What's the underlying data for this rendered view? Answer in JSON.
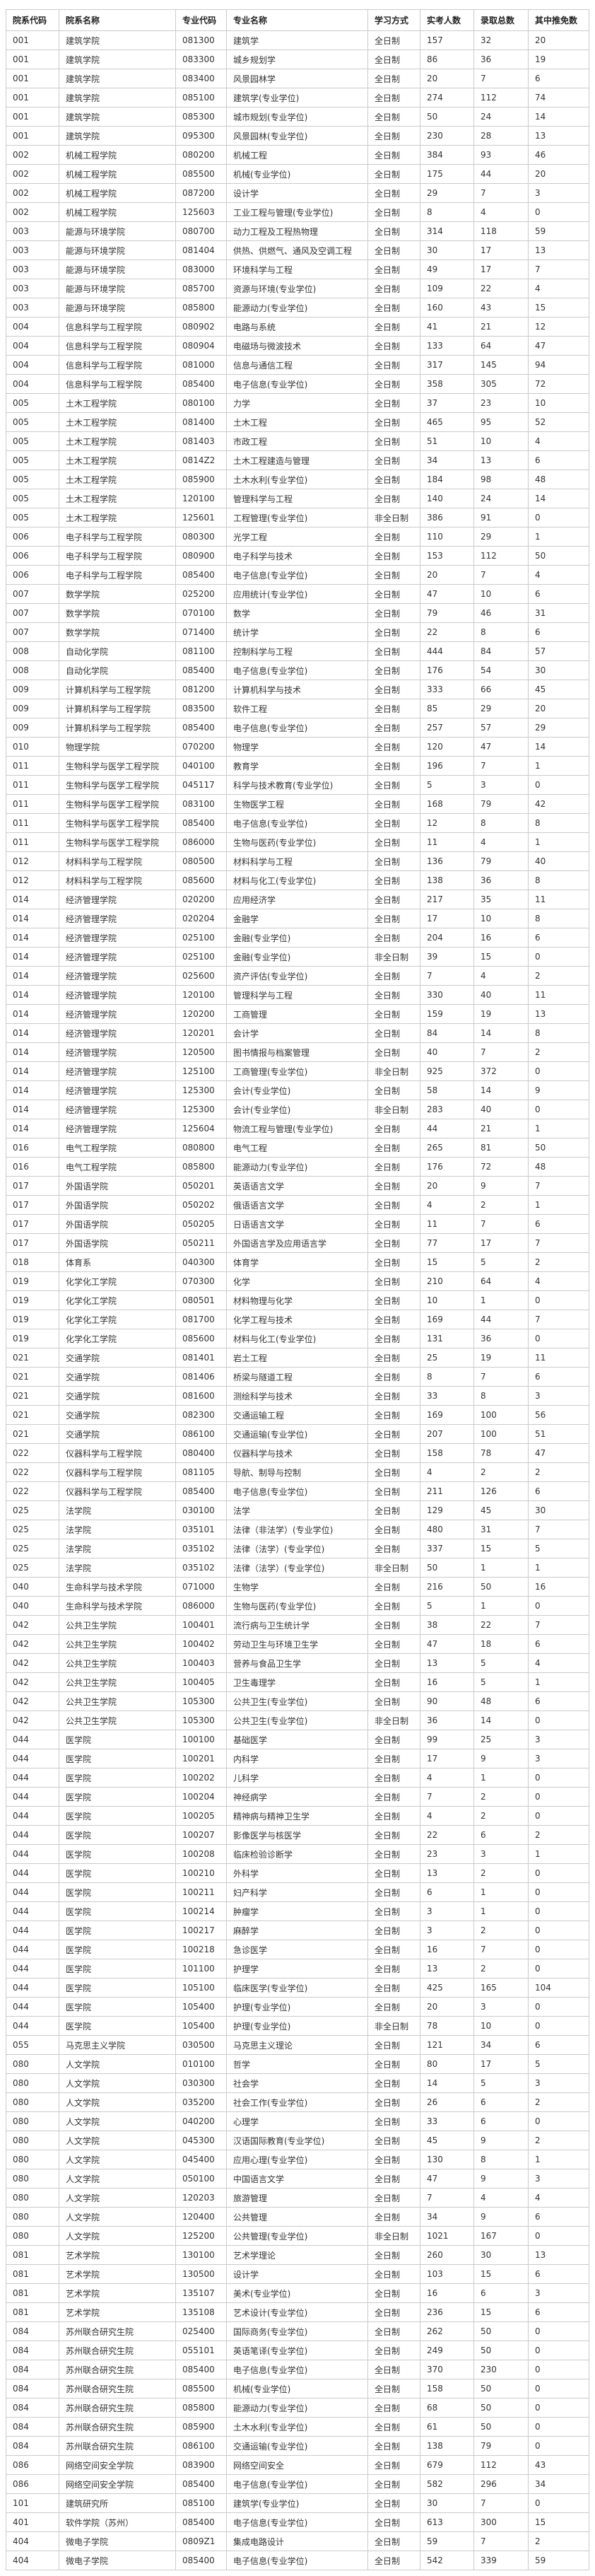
{
  "colors": {
    "background": "#ffffff",
    "border": "#cbcbcb",
    "text": "#333333",
    "header_text": "#222222"
  },
  "table": {
    "columns": [
      "院系代码",
      "院系名称",
      "专业代码",
      "专业名称",
      "学习方式",
      "实考人数",
      "录取总数",
      "其中推免数"
    ],
    "rows": [
      [
        "001",
        "建筑学院",
        "081300",
        "建筑学",
        "全日制",
        "157",
        "32",
        "20"
      ],
      [
        "001",
        "建筑学院",
        "083300",
        "城乡规划学",
        "全日制",
        "86",
        "36",
        "19"
      ],
      [
        "001",
        "建筑学院",
        "083400",
        "风景园林学",
        "全日制",
        "20",
        "7",
        "6"
      ],
      [
        "001",
        "建筑学院",
        "085100",
        "建筑学(专业学位)",
        "全日制",
        "274",
        "112",
        "74"
      ],
      [
        "001",
        "建筑学院",
        "085300",
        "城市规划(专业学位)",
        "全日制",
        "50",
        "24",
        "14"
      ],
      [
        "001",
        "建筑学院",
        "095300",
        "风景园林(专业学位)",
        "全日制",
        "230",
        "28",
        "13"
      ],
      [
        "002",
        "机械工程学院",
        "080200",
        "机械工程",
        "全日制",
        "384",
        "93",
        "46"
      ],
      [
        "002",
        "机械工程学院",
        "085500",
        "机械(专业学位)",
        "全日制",
        "175",
        "44",
        "20"
      ],
      [
        "002",
        "机械工程学院",
        "087200",
        "设计学",
        "全日制",
        "29",
        "7",
        "3"
      ],
      [
        "002",
        "机械工程学院",
        "125603",
        "工业工程与管理(专业学位)",
        "全日制",
        "8",
        "4",
        "0"
      ],
      [
        "003",
        "能源与环境学院",
        "080700",
        "动力工程及工程热物理",
        "全日制",
        "314",
        "118",
        "59"
      ],
      [
        "003",
        "能源与环境学院",
        "081404",
        "供热、供燃气、通风及空调工程",
        "全日制",
        "30",
        "17",
        "13"
      ],
      [
        "003",
        "能源与环境学院",
        "083000",
        "环境科学与工程",
        "全日制",
        "49",
        "17",
        "7"
      ],
      [
        "003",
        "能源与环境学院",
        "085700",
        "资源与环境(专业学位)",
        "全日制",
        "109",
        "22",
        "4"
      ],
      [
        "003",
        "能源与环境学院",
        "085800",
        "能源动力(专业学位)",
        "全日制",
        "160",
        "43",
        "15"
      ],
      [
        "004",
        "信息科学与工程学院",
        "080902",
        "电路与系统",
        "全日制",
        "41",
        "21",
        "12"
      ],
      [
        "004",
        "信息科学与工程学院",
        "080904",
        "电磁场与微波技术",
        "全日制",
        "133",
        "64",
        "47"
      ],
      [
        "004",
        "信息科学与工程学院",
        "081000",
        "信息与通信工程",
        "全日制",
        "317",
        "145",
        "94"
      ],
      [
        "004",
        "信息科学与工程学院",
        "085400",
        "电子信息(专业学位)",
        "全日制",
        "358",
        "305",
        "72"
      ],
      [
        "005",
        "土木工程学院",
        "080100",
        "力学",
        "全日制",
        "37",
        "23",
        "10"
      ],
      [
        "005",
        "土木工程学院",
        "081400",
        "土木工程",
        "全日制",
        "465",
        "95",
        "52"
      ],
      [
        "005",
        "土木工程学院",
        "081403",
        "市政工程",
        "全日制",
        "51",
        "10",
        "4"
      ],
      [
        "005",
        "土木工程学院",
        "0814Z2",
        "土木工程建造与管理",
        "全日制",
        "34",
        "13",
        "6"
      ],
      [
        "005",
        "土木工程学院",
        "085900",
        "土木水利(专业学位)",
        "全日制",
        "184",
        "98",
        "48"
      ],
      [
        "005",
        "土木工程学院",
        "120100",
        "管理科学与工程",
        "全日制",
        "140",
        "24",
        "14"
      ],
      [
        "005",
        "土木工程学院",
        "125601",
        "工程管理(专业学位)",
        "非全日制",
        "386",
        "91",
        "0"
      ],
      [
        "006",
        "电子科学与工程学院",
        "080300",
        "光学工程",
        "全日制",
        "110",
        "29",
        "1"
      ],
      [
        "006",
        "电子科学与工程学院",
        "080900",
        "电子科学与技术",
        "全日制",
        "153",
        "112",
        "50"
      ],
      [
        "006",
        "电子科学与工程学院",
        "085400",
        "电子信息(专业学位)",
        "全日制",
        "20",
        "7",
        "4"
      ],
      [
        "007",
        "数学学院",
        "025200",
        "应用统计(专业学位)",
        "全日制",
        "47",
        "10",
        "6"
      ],
      [
        "007",
        "数学学院",
        "070100",
        "数学",
        "全日制",
        "79",
        "46",
        "31"
      ],
      [
        "007",
        "数学学院",
        "071400",
        "统计学",
        "全日制",
        "22",
        "8",
        "6"
      ],
      [
        "008",
        "自动化学院",
        "081100",
        "控制科学与工程",
        "全日制",
        "444",
        "84",
        "57"
      ],
      [
        "008",
        "自动化学院",
        "085400",
        "电子信息(专业学位)",
        "全日制",
        "176",
        "54",
        "30"
      ],
      [
        "009",
        "计算机科学与工程学院",
        "081200",
        "计算机科学与技术",
        "全日制",
        "333",
        "66",
        "45"
      ],
      [
        "009",
        "计算机科学与工程学院",
        "083500",
        "软件工程",
        "全日制",
        "85",
        "29",
        "20"
      ],
      [
        "009",
        "计算机科学与工程学院",
        "085400",
        "电子信息(专业学位)",
        "全日制",
        "257",
        "57",
        "29"
      ],
      [
        "010",
        "物理学院",
        "070200",
        "物理学",
        "全日制",
        "120",
        "47",
        "14"
      ],
      [
        "011",
        "生物科学与医学工程学院",
        "040100",
        "教育学",
        "全日制",
        "196",
        "7",
        "1"
      ],
      [
        "011",
        "生物科学与医学工程学院",
        "045117",
        "科学与技术教育(专业学位)",
        "全日制",
        "5",
        "3",
        "0"
      ],
      [
        "011",
        "生物科学与医学工程学院",
        "083100",
        "生物医学工程",
        "全日制",
        "168",
        "79",
        "42"
      ],
      [
        "011",
        "生物科学与医学工程学院",
        "085400",
        "电子信息(专业学位)",
        "全日制",
        "12",
        "8",
        "8"
      ],
      [
        "011",
        "生物科学与医学工程学院",
        "086000",
        "生物与医药(专业学位)",
        "全日制",
        "11",
        "4",
        "1"
      ],
      [
        "012",
        "材料科学与工程学院",
        "080500",
        "材料科学与工程",
        "全日制",
        "136",
        "79",
        "40"
      ],
      [
        "012",
        "材料科学与工程学院",
        "085600",
        "材料与化工(专业学位)",
        "全日制",
        "138",
        "36",
        "8"
      ],
      [
        "014",
        "经济管理学院",
        "020200",
        "应用经济学",
        "全日制",
        "217",
        "35",
        "11"
      ],
      [
        "014",
        "经济管理学院",
        "020204",
        "金融学",
        "全日制",
        "17",
        "10",
        "8"
      ],
      [
        "014",
        "经济管理学院",
        "025100",
        "金融(专业学位)",
        "全日制",
        "204",
        "16",
        "6"
      ],
      [
        "014",
        "经济管理学院",
        "025100",
        "金融(专业学位)",
        "非全日制",
        "39",
        "15",
        "0"
      ],
      [
        "014",
        "经济管理学院",
        "025600",
        "资产评估(专业学位)",
        "全日制",
        "7",
        "4",
        "2"
      ],
      [
        "014",
        "经济管理学院",
        "120100",
        "管理科学与工程",
        "全日制",
        "330",
        "40",
        "11"
      ],
      [
        "014",
        "经济管理学院",
        "120200",
        "工商管理",
        "全日制",
        "159",
        "19",
        "13"
      ],
      [
        "014",
        "经济管理学院",
        "120201",
        "会计学",
        "全日制",
        "84",
        "14",
        "8"
      ],
      [
        "014",
        "经济管理学院",
        "120500",
        "图书情报与档案管理",
        "全日制",
        "40",
        "7",
        "2"
      ],
      [
        "014",
        "经济管理学院",
        "125100",
        "工商管理(专业学位)",
        "非全日制",
        "925",
        "372",
        "0"
      ],
      [
        "014",
        "经济管理学院",
        "125300",
        "会计(专业学位)",
        "全日制",
        "58",
        "14",
        "9"
      ],
      [
        "014",
        "经济管理学院",
        "125300",
        "会计(专业学位)",
        "非全日制",
        "283",
        "40",
        "0"
      ],
      [
        "014",
        "经济管理学院",
        "125604",
        "物流工程与管理(专业学位)",
        "全日制",
        "44",
        "21",
        "1"
      ],
      [
        "016",
        "电气工程学院",
        "080800",
        "电气工程",
        "全日制",
        "265",
        "81",
        "50"
      ],
      [
        "016",
        "电气工程学院",
        "085800",
        "能源动力(专业学位)",
        "全日制",
        "176",
        "72",
        "48"
      ],
      [
        "017",
        "外国语学院",
        "050201",
        "英语语言文学",
        "全日制",
        "20",
        "9",
        "7"
      ],
      [
        "017",
        "外国语学院",
        "050202",
        "俄语语言文学",
        "全日制",
        "4",
        "2",
        "1"
      ],
      [
        "017",
        "外国语学院",
        "050205",
        "日语语言文学",
        "全日制",
        "11",
        "7",
        "6"
      ],
      [
        "017",
        "外国语学院",
        "050211",
        "外国语言学及应用语言学",
        "全日制",
        "77",
        "17",
        "7"
      ],
      [
        "018",
        "体育系",
        "040300",
        "体育学",
        "全日制",
        "15",
        "5",
        "2"
      ],
      [
        "019",
        "化学化工学院",
        "070300",
        "化学",
        "全日制",
        "210",
        "64",
        "4"
      ],
      [
        "019",
        "化学化工学院",
        "080501",
        "材料物理与化学",
        "全日制",
        "10",
        "1",
        "0"
      ],
      [
        "019",
        "化学化工学院",
        "081700",
        "化学工程与技术",
        "全日制",
        "169",
        "44",
        "7"
      ],
      [
        "019",
        "化学化工学院",
        "085600",
        "材料与化工(专业学位)",
        "全日制",
        "131",
        "36",
        "0"
      ],
      [
        "021",
        "交通学院",
        "081401",
        "岩土工程",
        "全日制",
        "25",
        "19",
        "11"
      ],
      [
        "021",
        "交通学院",
        "081406",
        "桥梁与隧道工程",
        "全日制",
        "8",
        "7",
        "6"
      ],
      [
        "021",
        "交通学院",
        "081600",
        "测绘科学与技术",
        "全日制",
        "33",
        "8",
        "3"
      ],
      [
        "021",
        "交通学院",
        "082300",
        "交通运输工程",
        "全日制",
        "169",
        "100",
        "56"
      ],
      [
        "021",
        "交通学院",
        "086100",
        "交通运输(专业学位)",
        "全日制",
        "207",
        "100",
        "51"
      ],
      [
        "022",
        "仪器科学与工程学院",
        "080400",
        "仪器科学与技术",
        "全日制",
        "158",
        "78",
        "47"
      ],
      [
        "022",
        "仪器科学与工程学院",
        "081105",
        "导航、制导与控制",
        "全日制",
        "4",
        "2",
        "2"
      ],
      [
        "022",
        "仪器科学与工程学院",
        "085400",
        "电子信息(专业学位)",
        "全日制",
        "211",
        "126",
        "6"
      ],
      [
        "025",
        "法学院",
        "030100",
        "法学",
        "全日制",
        "129",
        "45",
        "30"
      ],
      [
        "025",
        "法学院",
        "035101",
        "法律（非法学）(专业学位)",
        "全日制",
        "480",
        "31",
        "7"
      ],
      [
        "025",
        "法学院",
        "035102",
        "法律（法学）(专业学位)",
        "全日制",
        "337",
        "15",
        "5"
      ],
      [
        "025",
        "法学院",
        "035102",
        "法律（法学）(专业学位)",
        "非全日制",
        "50",
        "1",
        "1"
      ],
      [
        "040",
        "生命科学与技术学院",
        "071000",
        "生物学",
        "全日制",
        "216",
        "50",
        "16"
      ],
      [
        "040",
        "生命科学与技术学院",
        "086000",
        "生物与医药(专业学位)",
        "全日制",
        "5",
        "1",
        "0"
      ],
      [
        "042",
        "公共卫生学院",
        "100401",
        "流行病与卫生统计学",
        "全日制",
        "38",
        "22",
        "7"
      ],
      [
        "042",
        "公共卫生学院",
        "100402",
        "劳动卫生与环境卫生学",
        "全日制",
        "47",
        "18",
        "6"
      ],
      [
        "042",
        "公共卫生学院",
        "100403",
        "营养与食品卫生学",
        "全日制",
        "13",
        "5",
        "4"
      ],
      [
        "042",
        "公共卫生学院",
        "100405",
        "卫生毒理学",
        "全日制",
        "16",
        "5",
        "1"
      ],
      [
        "042",
        "公共卫生学院",
        "105300",
        "公共卫生(专业学位)",
        "全日制",
        "90",
        "48",
        "6"
      ],
      [
        "042",
        "公共卫生学院",
        "105300",
        "公共卫生(专业学位)",
        "非全日制",
        "36",
        "14",
        "0"
      ],
      [
        "044",
        "医学院",
        "100100",
        "基础医学",
        "全日制",
        "99",
        "25",
        "3"
      ],
      [
        "044",
        "医学院",
        "100201",
        "内科学",
        "全日制",
        "17",
        "9",
        "3"
      ],
      [
        "044",
        "医学院",
        "100202",
        "儿科学",
        "全日制",
        "4",
        "1",
        "0"
      ],
      [
        "044",
        "医学院",
        "100204",
        "神经病学",
        "全日制",
        "7",
        "2",
        "0"
      ],
      [
        "044",
        "医学院",
        "100205",
        "精神病与精神卫生学",
        "全日制",
        "4",
        "2",
        "0"
      ],
      [
        "044",
        "医学院",
        "100207",
        "影像医学与核医学",
        "全日制",
        "22",
        "6",
        "2"
      ],
      [
        "044",
        "医学院",
        "100208",
        "临床检验诊断学",
        "全日制",
        "23",
        "3",
        "1"
      ],
      [
        "044",
        "医学院",
        "100210",
        "外科学",
        "全日制",
        "13",
        "2",
        "0"
      ],
      [
        "044",
        "医学院",
        "100211",
        "妇产科学",
        "全日制",
        "6",
        "1",
        "0"
      ],
      [
        "044",
        "医学院",
        "100214",
        "肿瘤学",
        "全日制",
        "3",
        "1",
        "0"
      ],
      [
        "044",
        "医学院",
        "100217",
        "麻醉学",
        "全日制",
        "3",
        "2",
        "0"
      ],
      [
        "044",
        "医学院",
        "100218",
        "急诊医学",
        "全日制",
        "16",
        "7",
        "0"
      ],
      [
        "044",
        "医学院",
        "101100",
        "护理学",
        "全日制",
        "13",
        "2",
        "0"
      ],
      [
        "044",
        "医学院",
        "105100",
        "临床医学(专业学位)",
        "全日制",
        "425",
        "165",
        "104"
      ],
      [
        "044",
        "医学院",
        "105400",
        "护理(专业学位)",
        "全日制",
        "20",
        "3",
        "0"
      ],
      [
        "044",
        "医学院",
        "105400",
        "护理(专业学位)",
        "非全日制",
        "78",
        "10",
        "0"
      ],
      [
        "055",
        "马克思主义学院",
        "030500",
        "马克思主义理论",
        "全日制",
        "121",
        "34",
        "6"
      ],
      [
        "080",
        "人文学院",
        "010100",
        "哲学",
        "全日制",
        "80",
        "17",
        "5"
      ],
      [
        "080",
        "人文学院",
        "030300",
        "社会学",
        "全日制",
        "14",
        "5",
        "3"
      ],
      [
        "080",
        "人文学院",
        "035200",
        "社会工作(专业学位)",
        "全日制",
        "26",
        "6",
        "2"
      ],
      [
        "080",
        "人文学院",
        "040200",
        "心理学",
        "全日制",
        "33",
        "6",
        "0"
      ],
      [
        "080",
        "人文学院",
        "045300",
        "汉语国际教育(专业学位)",
        "全日制",
        "45",
        "9",
        "2"
      ],
      [
        "080",
        "人文学院",
        "045400",
        "应用心理(专业学位)",
        "全日制",
        "130",
        "8",
        "1"
      ],
      [
        "080",
        "人文学院",
        "050100",
        "中国语言文学",
        "全日制",
        "47",
        "9",
        "3"
      ],
      [
        "080",
        "人文学院",
        "120203",
        "旅游管理",
        "全日制",
        "7",
        "4",
        "4"
      ],
      [
        "080",
        "人文学院",
        "120400",
        "公共管理",
        "全日制",
        "34",
        "9",
        "6"
      ],
      [
        "080",
        "人文学院",
        "125200",
        "公共管理(专业学位)",
        "非全日制",
        "1021",
        "167",
        "0"
      ],
      [
        "081",
        "艺术学院",
        "130100",
        "艺术学理论",
        "全日制",
        "260",
        "30",
        "13"
      ],
      [
        "081",
        "艺术学院",
        "130500",
        "设计学",
        "全日制",
        "103",
        "15",
        "6"
      ],
      [
        "081",
        "艺术学院",
        "135107",
        "美术(专业学位)",
        "全日制",
        "16",
        "6",
        "3"
      ],
      [
        "081",
        "艺术学院",
        "135108",
        "艺术设计(专业学位)",
        "全日制",
        "236",
        "15",
        "6"
      ],
      [
        "084",
        "苏州联合研究生院",
        "025400",
        "国际商务(专业学位)",
        "全日制",
        "262",
        "50",
        "0"
      ],
      [
        "084",
        "苏州联合研究生院",
        "055101",
        "英语笔译(专业学位)",
        "全日制",
        "249",
        "50",
        "0"
      ],
      [
        "084",
        "苏州联合研究生院",
        "085400",
        "电子信息(专业学位)",
        "全日制",
        "370",
        "230",
        "0"
      ],
      [
        "084",
        "苏州联合研究生院",
        "085500",
        "机械(专业学位)",
        "全日制",
        "158",
        "50",
        "0"
      ],
      [
        "084",
        "苏州联合研究生院",
        "085800",
        "能源动力(专业学位)",
        "全日制",
        "68",
        "50",
        "0"
      ],
      [
        "084",
        "苏州联合研究生院",
        "085900",
        "土木水利(专业学位)",
        "全日制",
        "61",
        "50",
        "0"
      ],
      [
        "084",
        "苏州联合研究生院",
        "086100",
        "交通运输(专业学位)",
        "全日制",
        "138",
        "79",
        "0"
      ],
      [
        "086",
        "网络空间安全学院",
        "083900",
        "网络空间安全",
        "全日制",
        "679",
        "112",
        "43"
      ],
      [
        "086",
        "网络空间安全学院",
        "085400",
        "电子信息(专业学位)",
        "全日制",
        "582",
        "296",
        "34"
      ],
      [
        "101",
        "建筑研究所",
        "085100",
        "建筑学(专业学位)",
        "全日制",
        "30",
        "7",
        "0"
      ],
      [
        "401",
        "软件学院（苏州）",
        "085400",
        "电子信息(专业学位)",
        "全日制",
        "613",
        "300",
        "15"
      ],
      [
        "404",
        "微电子学院",
        "0809Z1",
        "集成电路设计",
        "全日制",
        "59",
        "7",
        "2"
      ],
      [
        "404",
        "微电子学院",
        "085400",
        "电子信息(专业学位)",
        "全日制",
        "542",
        "339",
        "59"
      ]
    ]
  }
}
